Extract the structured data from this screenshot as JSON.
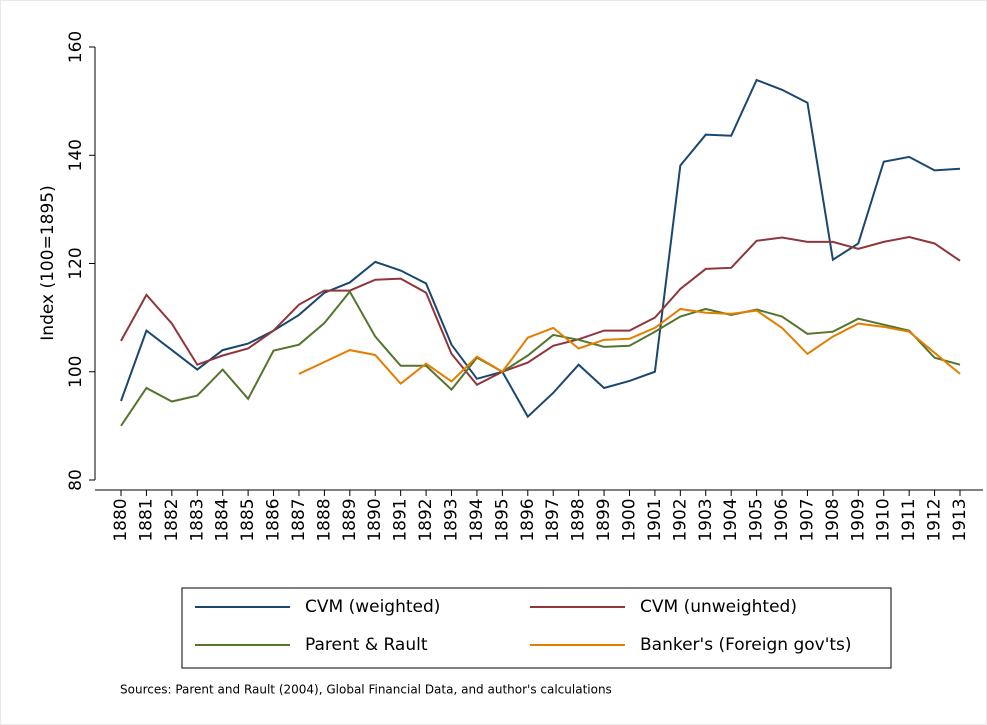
{
  "chart_data": {
    "type": "line",
    "y_label": "Index (100=1895)",
    "source": "Sources: Parent and Rault (2004), Global Financial Data, and author's calculations",
    "categories": [
      "1880",
      "1881",
      "1882",
      "1883",
      "1884",
      "1885",
      "1886",
      "1887",
      "1888",
      "1889",
      "1890",
      "1891",
      "1892",
      "1893",
      "1894",
      "1895",
      "1896",
      "1897",
      "1898",
      "1899",
      "1900",
      "1901",
      "1902",
      "1903",
      "1904",
      "1905",
      "1906",
      "1907",
      "1908",
      "1909",
      "1910",
      "1911",
      "1912",
      "1913"
    ],
    "series": [
      {
        "name": "CVM (weighted)",
        "color": "#1a476f",
        "values": [
          94.6,
          107.6,
          104,
          100.4,
          104,
          105.2,
          107.6,
          110.5,
          114.6,
          116.5,
          120.3,
          118.7,
          116.3,
          105,
          98.7,
          100,
          91.7,
          96.1,
          101.3,
          97,
          98.3,
          100,
          138.1,
          143.8,
          143.6,
          153.9,
          152.1,
          149.7,
          120.7,
          123.7,
          138.8,
          139.7,
          137.2,
          137.5
        ]
      },
      {
        "name": "CVM (unweighted)",
        "color": "#90353b",
        "values": [
          105.7,
          114.2,
          108.9,
          101.3,
          103,
          104.3,
          107.6,
          112.4,
          115,
          115,
          117,
          117.2,
          114.6,
          103.3,
          97.6,
          100,
          101.7,
          104.8,
          106,
          107.6,
          107.6,
          110,
          115.3,
          119,
          119.2,
          124.2,
          124.8,
          124,
          124,
          122.7,
          124,
          124.9,
          123.7,
          120.5
        ]
      },
      {
        "name": "Parent & Rault",
        "color": "#55752f",
        "values": [
          90,
          97,
          94.5,
          95.6,
          100.4,
          95,
          103.9,
          105,
          109,
          114.8,
          106.5,
          101.1,
          101.1,
          96.7,
          102.6,
          100,
          103,
          106.8,
          105.9,
          104.6,
          104.8,
          107.4,
          110.2,
          111.6,
          110.5,
          111.5,
          110.2,
          107,
          107.4,
          109.8,
          108.7,
          107.6,
          102.6,
          101.3
        ]
      },
      {
        "name": "Banker's (Foreign gov'ts)",
        "color": "#e37e00",
        "values": [
          null,
          null,
          null,
          null,
          null,
          null,
          null,
          99.6,
          101.8,
          104,
          103.1,
          97.8,
          101.5,
          98.2,
          102.8,
          100,
          106.3,
          108.1,
          104.3,
          105.9,
          106.1,
          108.1,
          111.6,
          110.9,
          110.7,
          111.3,
          108.1,
          103.3,
          106.5,
          108.9,
          108.3,
          107.4,
          103.5,
          99.6
        ]
      }
    ],
    "ylim": [
      80,
      160
    ],
    "yticks": [
      80,
      100,
      120,
      140,
      160
    ],
    "grid": false
  }
}
